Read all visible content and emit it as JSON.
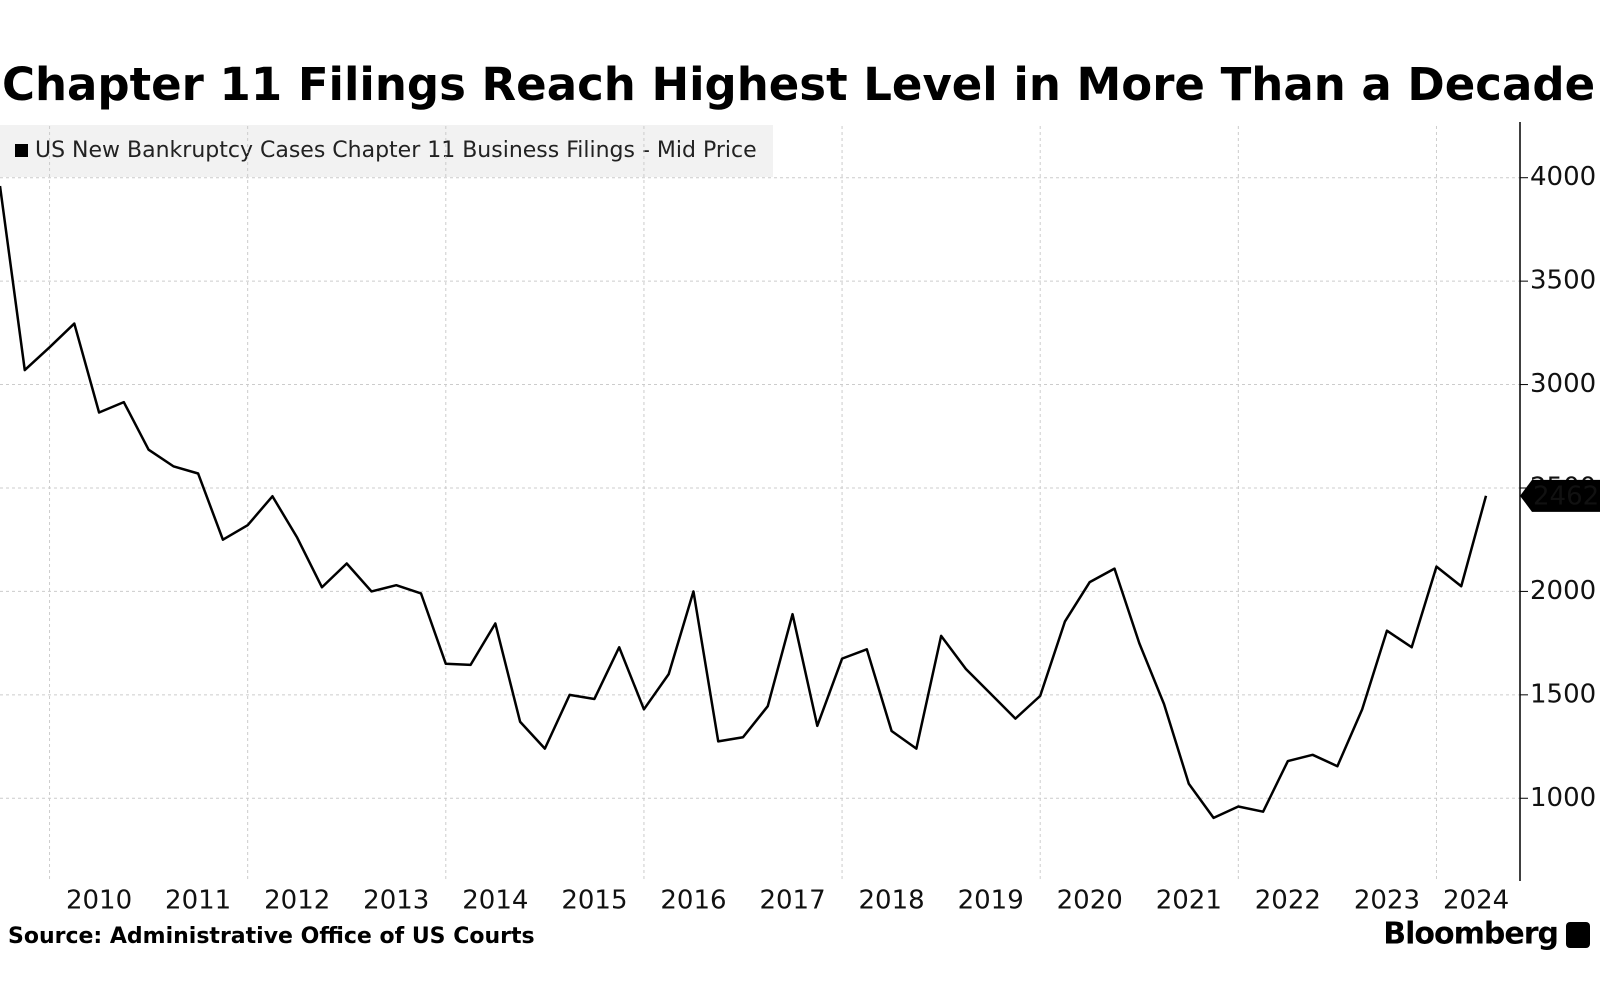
{
  "chart_data": {
    "type": "line",
    "title": "Chapter 11 Filings Reach Highest Level in More Than a Decade",
    "source": "Source: Administrative Office of US Courts",
    "brand": "Bloomberg",
    "x": [
      2009.5,
      2009.75,
      2010,
      2010.25,
      2010.5,
      2010.75,
      2011,
      2011.25,
      2011.5,
      2011.75,
      2012,
      2012.25,
      2012.5,
      2012.75,
      2013,
      2013.25,
      2013.5,
      2013.75,
      2014,
      2014.25,
      2014.5,
      2014.75,
      2015,
      2015.25,
      2015.5,
      2015.75,
      2016,
      2016.25,
      2016.5,
      2016.75,
      2017,
      2017.25,
      2017.5,
      2017.75,
      2018,
      2018.25,
      2018.5,
      2018.75,
      2019,
      2019.25,
      2019.5,
      2019.75,
      2020,
      2020.25,
      2020.5,
      2020.75,
      2021,
      2021.25,
      2021.5,
      2021.75,
      2022,
      2022.25,
      2022.5,
      2022.75,
      2023,
      2023.25,
      2023.5,
      2023.75,
      2024,
      2024.25,
      2024.5
    ],
    "series": [
      {
        "name": "US New Bankruptcy Cases Chapter 11 Business Filings - Mid Price",
        "color": "#000000",
        "values": [
          3960,
          3070,
          3180,
          3295,
          2865,
          2915,
          2685,
          2605,
          2570,
          2250,
          2320,
          2460,
          2260,
          2020,
          2135,
          2000,
          2030,
          1990,
          1650,
          1645,
          1845,
          1370,
          1240,
          1500,
          1480,
          1730,
          1430,
          1600,
          2000,
          1275,
          1295,
          1445,
          1890,
          1350,
          1675,
          1720,
          1325,
          1240,
          1785,
          1625,
          1505,
          1385,
          1495,
          1855,
          2045,
          2110,
          1750,
          1455,
          1070,
          905,
          960,
          935,
          1180,
          1210,
          1155,
          1430,
          1810,
          1730,
          2120,
          2025,
          2462
        ]
      }
    ],
    "xlim": [
      2009.5,
      2024.5
    ],
    "xticks": [
      {
        "value": 2010.5,
        "label": "2010"
      },
      {
        "value": 2011.5,
        "label": "2011"
      },
      {
        "value": 2012.5,
        "label": "2012"
      },
      {
        "value": 2013.5,
        "label": "2013"
      },
      {
        "value": 2014.5,
        "label": "2014"
      },
      {
        "value": 2015.5,
        "label": "2015"
      },
      {
        "value": 2016.5,
        "label": "2016"
      },
      {
        "value": 2017.5,
        "label": "2017"
      },
      {
        "value": 2018.5,
        "label": "2018"
      },
      {
        "value": 2019.5,
        "label": "2019"
      },
      {
        "value": 2020.5,
        "label": "2020"
      },
      {
        "value": 2021.5,
        "label": "2021"
      },
      {
        "value": 2022.5,
        "label": "2022"
      },
      {
        "value": 2023.5,
        "label": "2023"
      },
      {
        "value": 2024.4,
        "label": "2024"
      }
    ],
    "xgrid": [
      2010,
      2012,
      2014,
      2016,
      2018,
      2020,
      2022,
      2024
    ],
    "ylim": [
      600,
      4250
    ],
    "yticks": [
      1000,
      1500,
      2000,
      2500,
      3000,
      3500,
      4000
    ],
    "grid": true
  }
}
